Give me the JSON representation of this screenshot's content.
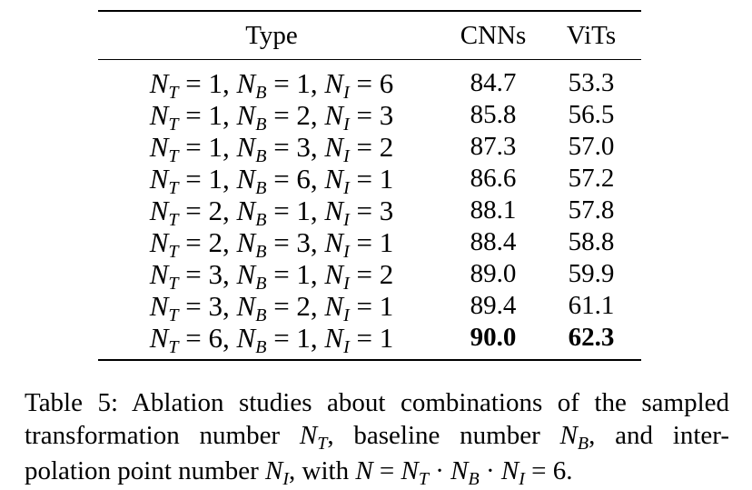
{
  "table": {
    "headers": [
      "Type",
      "CNNs",
      "ViTs"
    ],
    "rows": [
      {
        "nt": "1",
        "nb": "1",
        "ni": "6",
        "cnns": "84.7",
        "vits": "53.3"
      },
      {
        "nt": "1",
        "nb": "2",
        "ni": "3",
        "cnns": "85.8",
        "vits": "56.5"
      },
      {
        "nt": "1",
        "nb": "3",
        "ni": "2",
        "cnns": "87.3",
        "vits": "57.0"
      },
      {
        "nt": "1",
        "nb": "6",
        "ni": "1",
        "cnns": "86.6",
        "vits": "57.2"
      },
      {
        "nt": "2",
        "nb": "1",
        "ni": "3",
        "cnns": "88.1",
        "vits": "57.8"
      },
      {
        "nt": "2",
        "nb": "3",
        "ni": "1",
        "cnns": "88.4",
        "vits": "58.8"
      },
      {
        "nt": "3",
        "nb": "1",
        "ni": "2",
        "cnns": "89.0",
        "vits": "59.9"
      },
      {
        "nt": "3",
        "nb": "2",
        "ni": "1",
        "cnns": "89.4",
        "vits": "61.1"
      },
      {
        "nt": "6",
        "nb": "1",
        "ni": "1",
        "cnns": "90.0",
        "vits": "62.3"
      }
    ]
  },
  "caption": {
    "l1": "Table 5: Ablation studies about combinations of the sampled",
    "l2a": "transformation number ",
    "l2b": ", baseline number ",
    "l2c": ", and inter-",
    "l3a": "polation point number ",
    "l3b": ", with ",
    "eq_total": "6"
  }
}
